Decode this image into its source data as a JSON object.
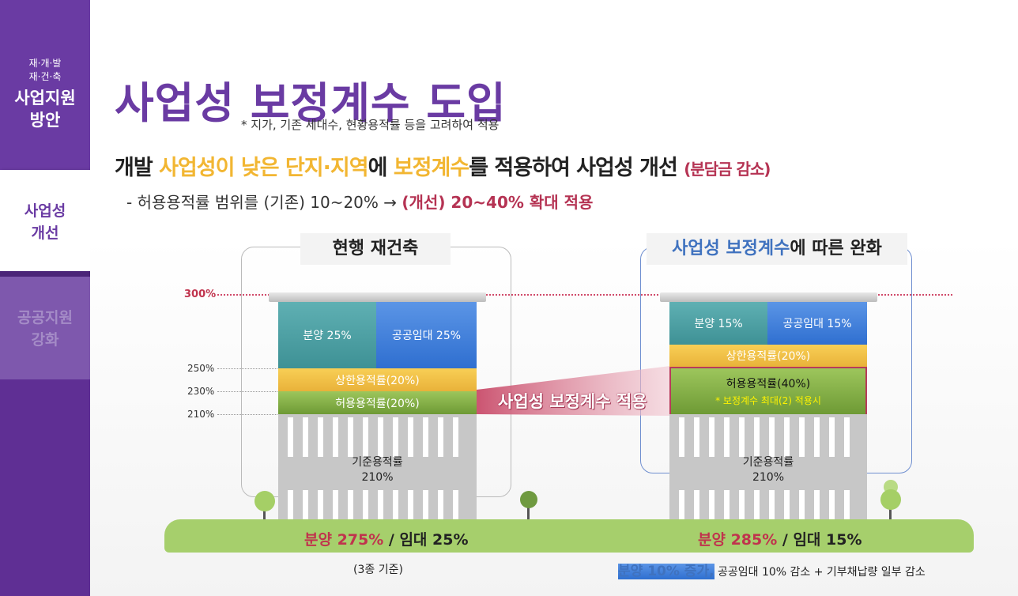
{
  "sidebar": {
    "top_small_line1": "재·개·발",
    "top_small_line2": "재·건·축",
    "top_big_line1": "사업지원",
    "top_big_line2": "방안",
    "active_line1": "사업성",
    "active_line2": "개선",
    "inactive_line1": "공공지원",
    "inactive_line2": "강화"
  },
  "header": {
    "title": "사업성 보정계수 도입",
    "note": "* 지가, 기존 세대수, 현황용적률 등을 고려하여 적용",
    "headline_part1": "개발 ",
    "headline_hl1": "사업성이 낮은 단지·지역",
    "headline_part2": "에 ",
    "headline_hl2": "보정계수",
    "headline_part3": "를 적용하여 사업성 개선 ",
    "headline_tag": "(분담금 감소)",
    "sub_plain": "- 허용용적률 범위를 (기존) 10~20% → ",
    "sub_red": "(개선) 20~40% 확대 적용"
  },
  "diagram": {
    "axis": {
      "l300": "300%",
      "l250": "250%",
      "l230": "230%",
      "l210": "210%"
    },
    "left": {
      "label": "현행  재건축",
      "sale": "분양 25%",
      "rent": "공공임대 25%",
      "upper": "상한용적률(20%)",
      "allowed": "허용용적률(20%)",
      "base_line1": "기준용적률",
      "base_line2": "210%",
      "ground": "분양 275%",
      "ground_rest": " / 임대 25%",
      "caption": "(3종 기준)"
    },
    "arrow_label": "사업성 보정계수  적용",
    "right": {
      "label_blue": "사업성 보정계수",
      "label_rest": "에 따른 완화",
      "sale": "분양 15%",
      "rent": "공공임대 15%",
      "upper": "상한용적률(20%)",
      "allowed": "허용용적률(40%)",
      "allowed_note": "* 보정계수 최대(2) 적용시",
      "base_line1": "기준용적률",
      "base_line2": "210%",
      "ground": "분양 285%",
      "ground_rest": " / 임대 15%",
      "caption_blue": "분양 10% 증가,",
      "caption_rest": " 공공임대 10% 감소 + 기부채납량 일부 감소"
    }
  },
  "colors": {
    "purple": "#6a3ba3",
    "yellow": "#f2b632",
    "red": "#c0334d",
    "blue": "#3f72bf",
    "green": "#a6cf6c"
  }
}
